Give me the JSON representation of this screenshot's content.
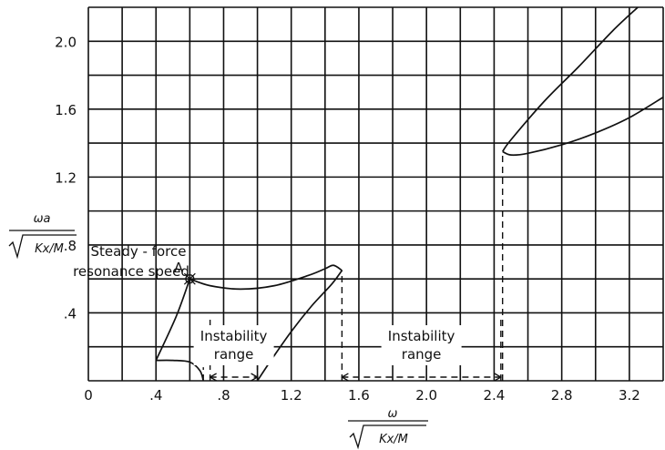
{
  "chart_data": {
    "type": "line",
    "xlim": [
      0,
      3.4
    ],
    "ylim": [
      0,
      2.2
    ],
    "grid": true,
    "xticks": [
      {
        "value": 0,
        "label": "0"
      },
      {
        "value": 0.4,
        "label": ".4"
      },
      {
        "value": 0.8,
        "label": ".8"
      },
      {
        "value": 1.2,
        "label": "1.2"
      },
      {
        "value": 1.6,
        "label": "1.6"
      },
      {
        "value": 2.0,
        "label": "2.0"
      },
      {
        "value": 2.4,
        "label": "2.4"
      },
      {
        "value": 2.8,
        "label": "2.8"
      },
      {
        "value": 3.2,
        "label": "3.2"
      }
    ],
    "yticks": [
      {
        "value": 0.4,
        "label": ".4"
      },
      {
        "value": 0.8,
        "label": ".8"
      },
      {
        "value": 1.2,
        "label": "1.2"
      },
      {
        "value": 1.6,
        "label": "1.6"
      },
      {
        "value": 2.0,
        "label": "2.0"
      }
    ],
    "xlabel": {
      "numerator": "ω",
      "denominator": "Kx/M"
    },
    "ylabel": {
      "numerator": "ωa",
      "denominator": "Kx/M"
    },
    "series": [
      {
        "points": [
          [
            0.4,
            0.12
          ],
          [
            0.52,
            0.38
          ],
          [
            0.6,
            0.6
          ]
        ]
      },
      {
        "points": [
          [
            0.6,
            0.6
          ],
          [
            0.72,
            0.56
          ],
          [
            0.9,
            0.54
          ],
          [
            1.1,
            0.56
          ],
          [
            1.3,
            0.62
          ],
          [
            1.4,
            0.66
          ],
          [
            1.45,
            0.68
          ],
          [
            1.5,
            0.65
          ]
        ]
      },
      {
        "points": [
          [
            1.0,
            0.0
          ],
          [
            1.08,
            0.12
          ],
          [
            1.2,
            0.29
          ],
          [
            1.32,
            0.44
          ],
          [
            1.44,
            0.57
          ],
          [
            1.5,
            0.65
          ]
        ]
      },
      {
        "points": [
          [
            0.4,
            0.12
          ],
          [
            0.5,
            0.12
          ],
          [
            0.6,
            0.11
          ],
          [
            0.66,
            0.06
          ],
          [
            0.68,
            0.0
          ]
        ]
      },
      {
        "points": [
          [
            2.45,
            1.35
          ],
          [
            2.5,
            1.42
          ],
          [
            2.7,
            1.65
          ],
          [
            2.9,
            1.85
          ],
          [
            3.1,
            2.06
          ],
          [
            3.25,
            2.2
          ]
        ]
      },
      {
        "points": [
          [
            2.45,
            1.35
          ],
          [
            2.5,
            1.33
          ],
          [
            2.6,
            1.34
          ],
          [
            2.8,
            1.39
          ],
          [
            3.0,
            1.46
          ],
          [
            3.2,
            1.55
          ],
          [
            3.4,
            1.67
          ]
        ]
      }
    ],
    "dashed_lines": [
      {
        "points": [
          [
            0.68,
            0.0
          ],
          [
            0.68,
            0.08
          ]
        ]
      },
      {
        "points": [
          [
            0.72,
            0.0
          ],
          [
            0.72,
            0.38
          ]
        ]
      },
      {
        "points": [
          [
            1.0,
            0.0
          ],
          [
            1.0,
            0.22
          ]
        ]
      },
      {
        "points": [
          [
            1.5,
            0.0
          ],
          [
            1.5,
            0.65
          ]
        ]
      },
      {
        "points": [
          [
            2.44,
            0.0
          ],
          [
            2.44,
            0.38
          ]
        ]
      },
      {
        "points": [
          [
            2.45,
            0.0
          ],
          [
            2.45,
            1.35
          ]
        ]
      }
    ],
    "ranges": [
      {
        "from": 0.72,
        "to": 1.0,
        "label_line1": "Instability",
        "label_line2": "range"
      },
      {
        "from": 1.5,
        "to": 2.44,
        "label_line1": "Instability",
        "label_line2": "range"
      }
    ],
    "point_a": {
      "x": 0.6,
      "y": 0.6,
      "label": "A"
    },
    "annotation": {
      "line1": "Steady - force",
      "line2": "resonance speed"
    }
  }
}
